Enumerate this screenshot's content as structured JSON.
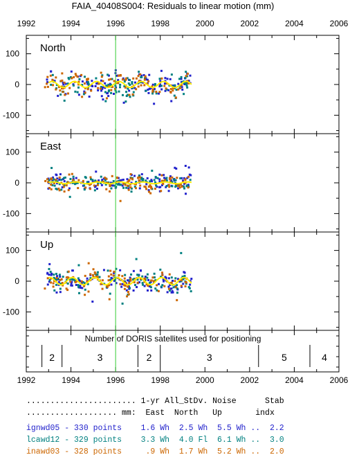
{
  "chart_data": {
    "type": "scatter",
    "title": "FAIA_40408S004: Residuals to linear motion (mm)",
    "xlim": [
      1992,
      2006
    ],
    "x_ticks": [
      "1992",
      "1994",
      "1996",
      "1998",
      "2000",
      "2002",
      "2004",
      "2006"
    ],
    "ylim": [
      -160,
      160
    ],
    "y_ticks": [
      "100",
      "0",
      "-100"
    ],
    "vertical_marker_year": 1996.0,
    "marker_color": "#33cc33",
    "fit_color": "#ffee00",
    "panels": [
      {
        "label": "North",
        "amplitude": 10,
        "phase": 0.6,
        "scatter": 18
      },
      {
        "label": "East",
        "amplitude": 3,
        "phase": 0.2,
        "scatter": 14
      },
      {
        "label": "Up",
        "amplitude": 12,
        "phase": 1.2,
        "scatter": 16
      }
    ],
    "series": [
      {
        "name": "ignwd05",
        "color": "#2222cc",
        "start": 1992.9,
        "end": 1999.4
      },
      {
        "name": "lcawd12",
        "color": "#008080",
        "start": 1993.0,
        "end": 1999.4
      },
      {
        "name": "inawd03",
        "color": "#cc6600",
        "start": 1992.8,
        "end": 1999.3
      }
    ],
    "satellites_title": "Number of DORIS satellites used for positioning",
    "satellites": [
      {
        "start": 1992.7,
        "end": 1993.6,
        "count": "2"
      },
      {
        "start": 1993.6,
        "end": 1997.0,
        "count": "3"
      },
      {
        "start": 1997.0,
        "end": 1998.0,
        "count": "2"
      },
      {
        "start": 1998.0,
        "end": 2002.4,
        "count": "3"
      },
      {
        "start": 2002.4,
        "end": 2004.7,
        "count": "5"
      },
      {
        "start": 2004.7,
        "end": 2006.0,
        "count": "4"
      }
    ]
  },
  "stats_table": {
    "header1": "....................... 1-yr All_StDv. Noise      Stab",
    "header2": "................... mm:  East  North   Up       indx",
    "rows": [
      {
        "text": "ignwd05 - 330 points    1.6 Wh  2.5 Wh  5.5 Wh ..  2.2",
        "color": "#2222cc"
      },
      {
        "text": "lcawd12 - 329 points    3.3 Wh  4.0 Fl  6.1 Wh ..  3.0",
        "color": "#008080"
      },
      {
        "text": "inawd03 - 328 points     .9 Wh  1.7 Wh  5.2 Wh ..  2.0",
        "color": "#cc6600"
      }
    ]
  }
}
